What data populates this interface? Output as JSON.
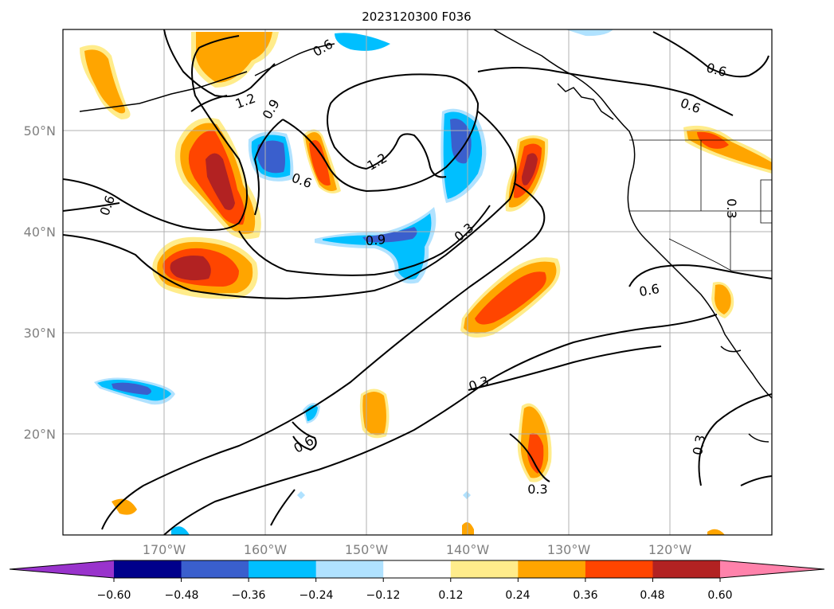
{
  "title": "2023120300 F036",
  "map": {
    "lon_range": [
      -180,
      -110
    ],
    "lat_range": [
      10,
      60
    ],
    "lon_ticks": [
      "170°W",
      "160°W",
      "150°W",
      "140°W",
      "130°W",
      "120°W"
    ],
    "lat_ticks": [
      "50°N",
      "40°N",
      "30°N",
      "20°N"
    ],
    "grid": true
  },
  "contour_labels": [
    "0.6",
    "1.2",
    "0.9",
    "0.6",
    "1.2",
    "0.6",
    "0.6",
    "0.6",
    "0.9",
    "0.3",
    "0.3",
    "0.6",
    "0.3",
    "0.3",
    "0.6",
    "0.3"
  ],
  "colorbar": {
    "ticks": [
      "−0.60",
      "−0.48",
      "−0.36",
      "−0.24",
      "−0.12",
      "0.12",
      "0.24",
      "0.36",
      "0.48",
      "0.60"
    ],
    "colors": [
      "#9933cc",
      "#00008b",
      "#3a5fcd",
      "#00bfff",
      "#b0e2ff",
      "#ffffff",
      "#ffec8b",
      "#ffa500",
      "#ff4500",
      "#b22222",
      "#ff82ab"
    ]
  },
  "fill_colors": {
    "pos1": "#ffec8b",
    "pos2": "#ffa500",
    "pos3": "#ff4500",
    "pos4": "#b22222",
    "neg1": "#b0e2ff",
    "neg2": "#00bfff",
    "neg3": "#3a5fcd"
  }
}
